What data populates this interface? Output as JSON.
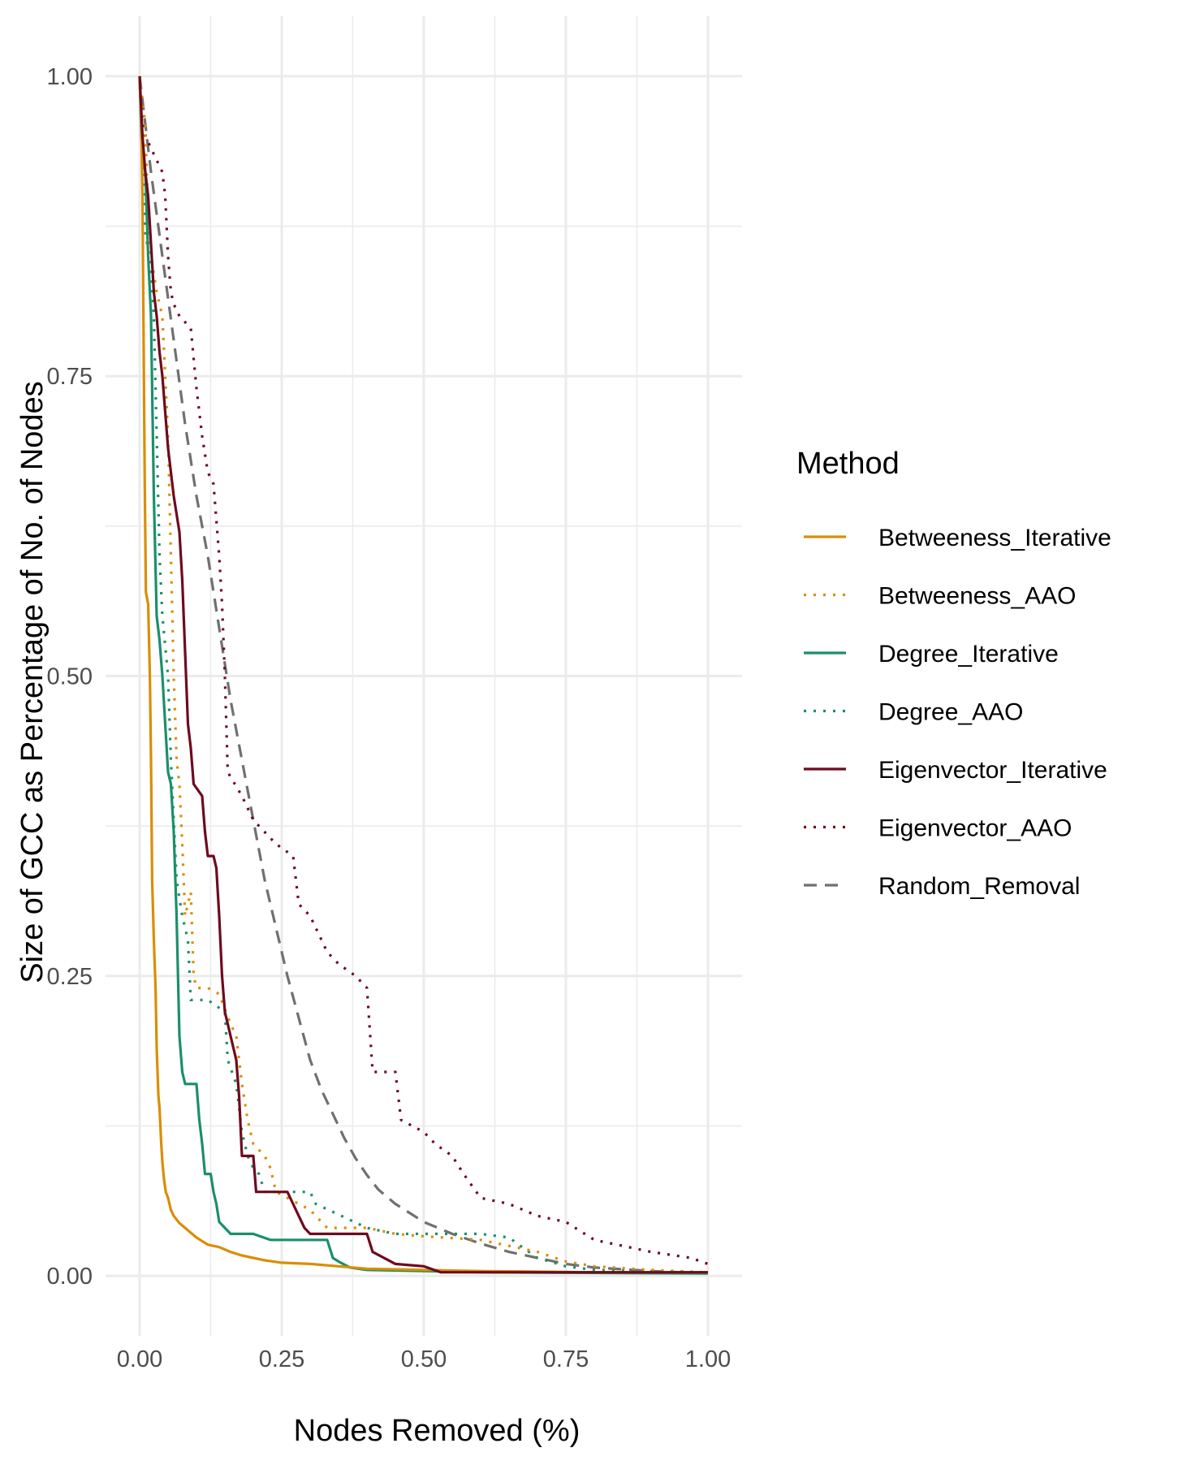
{
  "chart_data": {
    "type": "line",
    "xlabel": "Nodes Removed (%)",
    "ylabel": "Size of GCC as Percentage of No. of Nodes",
    "xlim": [
      -0.06,
      1.06
    ],
    "ylim": [
      -0.05,
      1.05
    ],
    "x_ticks": [
      "0.00",
      "0.25",
      "0.50",
      "0.75",
      "1.00"
    ],
    "y_ticks": [
      "0.00",
      "0.25",
      "0.50",
      "0.75",
      "1.00"
    ],
    "grid": true,
    "legend": {
      "title": "Method",
      "position": "right"
    },
    "series": [
      {
        "name": "Betweeness_Iterative",
        "color": "#D98E04",
        "dash": "solid",
        "points": [
          [
            0,
            1.0
          ],
          [
            0.003,
            0.96
          ],
          [
            0.005,
            0.9
          ],
          [
            0.007,
            0.78
          ],
          [
            0.009,
            0.66
          ],
          [
            0.011,
            0.57
          ],
          [
            0.015,
            0.56
          ],
          [
            0.018,
            0.5
          ],
          [
            0.02,
            0.43
          ],
          [
            0.022,
            0.33
          ],
          [
            0.025,
            0.28
          ],
          [
            0.028,
            0.24
          ],
          [
            0.03,
            0.19
          ],
          [
            0.033,
            0.15
          ],
          [
            0.035,
            0.14
          ],
          [
            0.038,
            0.11
          ],
          [
            0.04,
            0.095
          ],
          [
            0.043,
            0.08
          ],
          [
            0.046,
            0.07
          ],
          [
            0.05,
            0.065
          ],
          [
            0.055,
            0.055
          ],
          [
            0.06,
            0.05
          ],
          [
            0.065,
            0.047
          ],
          [
            0.07,
            0.044
          ],
          [
            0.08,
            0.04
          ],
          [
            0.09,
            0.036
          ],
          [
            0.1,
            0.032
          ],
          [
            0.11,
            0.029
          ],
          [
            0.12,
            0.026
          ],
          [
            0.14,
            0.024
          ],
          [
            0.16,
            0.02
          ],
          [
            0.18,
            0.017
          ],
          [
            0.2,
            0.015
          ],
          [
            0.22,
            0.013
          ],
          [
            0.25,
            0.011
          ],
          [
            0.3,
            0.01
          ],
          [
            0.35,
            0.008
          ],
          [
            0.4,
            0.006
          ],
          [
            0.5,
            0.005
          ],
          [
            0.6,
            0.004
          ],
          [
            0.8,
            0.003
          ],
          [
            1.0,
            0.003
          ]
        ]
      },
      {
        "name": "Betweeness_AAO",
        "color": "#D98E04",
        "dash": "dotted",
        "points": [
          [
            0,
            1.0
          ],
          [
            0.01,
            0.96
          ],
          [
            0.015,
            0.88
          ],
          [
            0.02,
            0.85
          ],
          [
            0.03,
            0.82
          ],
          [
            0.04,
            0.8
          ],
          [
            0.045,
            0.75
          ],
          [
            0.05,
            0.7
          ],
          [
            0.055,
            0.6
          ],
          [
            0.06,
            0.5
          ],
          [
            0.065,
            0.43
          ],
          [
            0.07,
            0.41
          ],
          [
            0.075,
            0.36
          ],
          [
            0.08,
            0.3
          ],
          [
            0.09,
            0.32
          ],
          [
            0.095,
            0.25
          ],
          [
            0.1,
            0.24
          ],
          [
            0.12,
            0.24
          ],
          [
            0.14,
            0.235
          ],
          [
            0.16,
            0.21
          ],
          [
            0.17,
            0.2
          ],
          [
            0.18,
            0.16
          ],
          [
            0.19,
            0.13
          ],
          [
            0.2,
            0.11
          ],
          [
            0.22,
            0.1
          ],
          [
            0.23,
            0.09
          ],
          [
            0.24,
            0.07
          ],
          [
            0.26,
            0.065
          ],
          [
            0.28,
            0.06
          ],
          [
            0.3,
            0.055
          ],
          [
            0.32,
            0.045
          ],
          [
            0.33,
            0.04
          ],
          [
            0.4,
            0.04
          ],
          [
            0.45,
            0.035
          ],
          [
            0.5,
            0.033
          ],
          [
            0.6,
            0.03
          ],
          [
            0.65,
            0.025
          ],
          [
            0.7,
            0.02
          ],
          [
            0.75,
            0.012
          ],
          [
            0.8,
            0.008
          ],
          [
            0.9,
            0.005
          ],
          [
            1.0,
            0.003
          ]
        ]
      },
      {
        "name": "Degree_Iterative",
        "color": "#1B8F6A",
        "dash": "solid",
        "points": [
          [
            0,
            1.0
          ],
          [
            0.003,
            0.95
          ],
          [
            0.006,
            0.93
          ],
          [
            0.01,
            0.92
          ],
          [
            0.015,
            0.85
          ],
          [
            0.02,
            0.8
          ],
          [
            0.025,
            0.65
          ],
          [
            0.03,
            0.55
          ],
          [
            0.035,
            0.53
          ],
          [
            0.04,
            0.5
          ],
          [
            0.045,
            0.46
          ],
          [
            0.05,
            0.42
          ],
          [
            0.055,
            0.41
          ],
          [
            0.06,
            0.37
          ],
          [
            0.065,
            0.3
          ],
          [
            0.07,
            0.2
          ],
          [
            0.075,
            0.17
          ],
          [
            0.08,
            0.16
          ],
          [
            0.1,
            0.16
          ],
          [
            0.105,
            0.13
          ],
          [
            0.11,
            0.11
          ],
          [
            0.115,
            0.085
          ],
          [
            0.125,
            0.085
          ],
          [
            0.13,
            0.07
          ],
          [
            0.135,
            0.06
          ],
          [
            0.14,
            0.045
          ],
          [
            0.15,
            0.04
          ],
          [
            0.16,
            0.035
          ],
          [
            0.2,
            0.035
          ],
          [
            0.23,
            0.03
          ],
          [
            0.25,
            0.03
          ],
          [
            0.3,
            0.03
          ],
          [
            0.33,
            0.03
          ],
          [
            0.34,
            0.015
          ],
          [
            0.35,
            0.012
          ],
          [
            0.37,
            0.007
          ],
          [
            0.4,
            0.005
          ],
          [
            0.5,
            0.004
          ],
          [
            0.6,
            0.003
          ],
          [
            1.0,
            0.002
          ]
        ]
      },
      {
        "name": "Degree_AAO",
        "color": "#1B8F6A",
        "dash": "dotted",
        "points": [
          [
            0,
            1.0
          ],
          [
            0.005,
            0.93
          ],
          [
            0.01,
            0.87
          ],
          [
            0.02,
            0.84
          ],
          [
            0.025,
            0.8
          ],
          [
            0.03,
            0.7
          ],
          [
            0.035,
            0.6
          ],
          [
            0.04,
            0.55
          ],
          [
            0.05,
            0.5
          ],
          [
            0.055,
            0.43
          ],
          [
            0.06,
            0.38
          ],
          [
            0.065,
            0.33
          ],
          [
            0.075,
            0.3
          ],
          [
            0.085,
            0.28
          ],
          [
            0.09,
            0.23
          ],
          [
            0.12,
            0.23
          ],
          [
            0.15,
            0.22
          ],
          [
            0.155,
            0.18
          ],
          [
            0.17,
            0.16
          ],
          [
            0.18,
            0.12
          ],
          [
            0.19,
            0.1
          ],
          [
            0.2,
            0.09
          ],
          [
            0.21,
            0.085
          ],
          [
            0.22,
            0.07
          ],
          [
            0.3,
            0.07
          ],
          [
            0.31,
            0.06
          ],
          [
            0.4,
            0.04
          ],
          [
            0.45,
            0.035
          ],
          [
            0.55,
            0.035
          ],
          [
            0.6,
            0.035
          ],
          [
            0.65,
            0.032
          ],
          [
            0.67,
            0.025
          ],
          [
            0.7,
            0.015
          ],
          [
            0.75,
            0.008
          ],
          [
            0.8,
            0.005
          ],
          [
            0.9,
            0.004
          ],
          [
            1.0,
            0.003
          ]
        ]
      },
      {
        "name": "Eigenvector_Iterative",
        "color": "#6E0A1E",
        "dash": "solid",
        "points": [
          [
            0,
            1.0
          ],
          [
            0.005,
            0.95
          ],
          [
            0.01,
            0.92
          ],
          [
            0.015,
            0.9
          ],
          [
            0.02,
            0.86
          ],
          [
            0.025,
            0.82
          ],
          [
            0.03,
            0.8
          ],
          [
            0.035,
            0.77
          ],
          [
            0.04,
            0.75
          ],
          [
            0.045,
            0.72
          ],
          [
            0.05,
            0.69
          ],
          [
            0.055,
            0.67
          ],
          [
            0.06,
            0.65
          ],
          [
            0.07,
            0.62
          ],
          [
            0.075,
            0.58
          ],
          [
            0.08,
            0.52
          ],
          [
            0.085,
            0.46
          ],
          [
            0.09,
            0.44
          ],
          [
            0.095,
            0.41
          ],
          [
            0.11,
            0.4
          ],
          [
            0.115,
            0.37
          ],
          [
            0.12,
            0.35
          ],
          [
            0.13,
            0.35
          ],
          [
            0.135,
            0.34
          ],
          [
            0.14,
            0.3
          ],
          [
            0.145,
            0.25
          ],
          [
            0.15,
            0.22
          ],
          [
            0.16,
            0.2
          ],
          [
            0.17,
            0.18
          ],
          [
            0.175,
            0.15
          ],
          [
            0.18,
            0.1
          ],
          [
            0.2,
            0.1
          ],
          [
            0.205,
            0.07
          ],
          [
            0.23,
            0.07
          ],
          [
            0.26,
            0.07
          ],
          [
            0.27,
            0.06
          ],
          [
            0.28,
            0.05
          ],
          [
            0.29,
            0.04
          ],
          [
            0.3,
            0.035
          ],
          [
            0.35,
            0.035
          ],
          [
            0.4,
            0.035
          ],
          [
            0.41,
            0.02
          ],
          [
            0.45,
            0.01
          ],
          [
            0.5,
            0.008
          ],
          [
            0.53,
            0.003
          ],
          [
            0.6,
            0.003
          ],
          [
            0.8,
            0.003
          ],
          [
            1.0,
            0.003
          ]
        ]
      },
      {
        "name": "Eigenvector_AAO",
        "color": "#6E0A1E",
        "dash": "dotted",
        "points": [
          [
            0,
            1.0
          ],
          [
            0.005,
            0.96
          ],
          [
            0.01,
            0.95
          ],
          [
            0.02,
            0.94
          ],
          [
            0.03,
            0.93
          ],
          [
            0.04,
            0.92
          ],
          [
            0.045,
            0.9
          ],
          [
            0.05,
            0.85
          ],
          [
            0.055,
            0.82
          ],
          [
            0.06,
            0.81
          ],
          [
            0.07,
            0.8
          ],
          [
            0.09,
            0.79
          ],
          [
            0.1,
            0.74
          ],
          [
            0.11,
            0.7
          ],
          [
            0.12,
            0.67
          ],
          [
            0.13,
            0.66
          ],
          [
            0.14,
            0.6
          ],
          [
            0.145,
            0.56
          ],
          [
            0.15,
            0.5
          ],
          [
            0.155,
            0.42
          ],
          [
            0.18,
            0.4
          ],
          [
            0.2,
            0.38
          ],
          [
            0.22,
            0.37
          ],
          [
            0.24,
            0.36
          ],
          [
            0.27,
            0.35
          ],
          [
            0.28,
            0.31
          ],
          [
            0.3,
            0.3
          ],
          [
            0.32,
            0.28
          ],
          [
            0.33,
            0.27
          ],
          [
            0.35,
            0.26
          ],
          [
            0.38,
            0.25
          ],
          [
            0.4,
            0.24
          ],
          [
            0.41,
            0.17
          ],
          [
            0.45,
            0.17
          ],
          [
            0.46,
            0.13
          ],
          [
            0.5,
            0.12
          ],
          [
            0.52,
            0.11
          ],
          [
            0.55,
            0.1
          ],
          [
            0.57,
            0.085
          ],
          [
            0.6,
            0.065
          ],
          [
            0.65,
            0.06
          ],
          [
            0.7,
            0.05
          ],
          [
            0.75,
            0.045
          ],
          [
            0.8,
            0.03
          ],
          [
            0.9,
            0.02
          ],
          [
            0.97,
            0.015
          ],
          [
            1.0,
            0.01
          ]
        ]
      },
      {
        "name": "Random_Removal",
        "color": "#707070",
        "dash": "dashed",
        "points": [
          [
            0,
            1.0
          ],
          [
            0.02,
            0.92
          ],
          [
            0.04,
            0.85
          ],
          [
            0.06,
            0.78
          ],
          [
            0.08,
            0.71
          ],
          [
            0.1,
            0.65
          ],
          [
            0.12,
            0.6
          ],
          [
            0.14,
            0.54
          ],
          [
            0.16,
            0.48
          ],
          [
            0.18,
            0.43
          ],
          [
            0.2,
            0.38
          ],
          [
            0.22,
            0.33
          ],
          [
            0.24,
            0.29
          ],
          [
            0.26,
            0.25
          ],
          [
            0.28,
            0.215
          ],
          [
            0.3,
            0.18
          ],
          [
            0.32,
            0.155
          ],
          [
            0.34,
            0.135
          ],
          [
            0.36,
            0.115
          ],
          [
            0.38,
            0.098
          ],
          [
            0.4,
            0.084
          ],
          [
            0.42,
            0.072
          ],
          [
            0.45,
            0.06
          ],
          [
            0.5,
            0.045
          ],
          [
            0.55,
            0.035
          ],
          [
            0.6,
            0.027
          ],
          [
            0.65,
            0.02
          ],
          [
            0.7,
            0.015
          ],
          [
            0.75,
            0.01
          ],
          [
            0.8,
            0.007
          ],
          [
            0.9,
            0.004
          ],
          [
            1.0,
            0.002
          ]
        ]
      }
    ]
  }
}
